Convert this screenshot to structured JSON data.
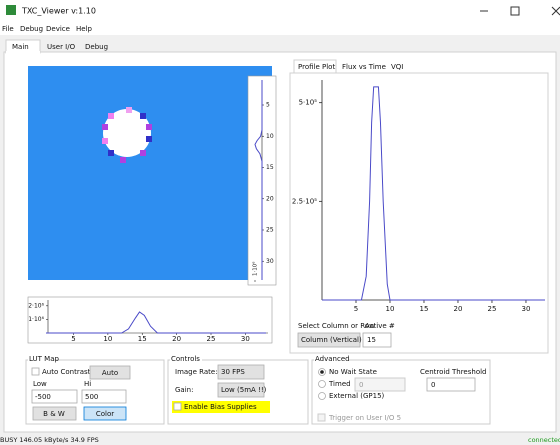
{
  "window": {
    "title": "TXC_Viewer v:1.10"
  },
  "menu": [
    "File",
    "Debug",
    "Device",
    "Help"
  ],
  "tabs": [
    "Main",
    "User I/O",
    "Debug"
  ],
  "plot_tabs": [
    "Profile Plot",
    "Flux vs Time",
    "VQI"
  ],
  "profile_plot": {
    "type": "line",
    "color": "#4a4ac8",
    "xlim": [
      0,
      32.8
    ],
    "ylim": [
      0,
      560000
    ],
    "xticks": [
      5,
      10,
      15,
      20,
      25,
      30
    ],
    "yticks": [
      {
        "value": 500000,
        "label": "5·10⁵"
      },
      {
        "value": 250000,
        "label": "2.5·10⁵"
      }
    ],
    "x": [
      0,
      5.8,
      6.5,
      7,
      7.3,
      7.6,
      8.3,
      8.6,
      9,
      9.6,
      10,
      32.8
    ],
    "values": [
      0,
      0,
      60000,
      250000,
      450000,
      540000,
      540000,
      450000,
      250000,
      40000,
      0,
      0
    ]
  },
  "row_profile": {
    "type": "line",
    "color": "#4a4ac8",
    "xlim": [
      1,
      33
    ],
    "ylim": [
      0,
      2500000
    ],
    "xticks": [
      5,
      10,
      15,
      20,
      25,
      30
    ],
    "yticks": [
      {
        "value": 2000000,
        "label": "2·10⁶"
      },
      {
        "value": 1000000,
        "label": "1·10⁶"
      }
    ],
    "x": [
      1,
      12,
      13,
      14,
      14.6,
      15.3,
      16.2,
      17.2,
      33
    ],
    "values": [
      0,
      0,
      300000,
      1100000,
      1550000,
      1300000,
      500000,
      0,
      0
    ]
  },
  "column_profile": {
    "type": "line",
    "color": "#4a4ac8",
    "xlim": [
      1,
      33
    ],
    "ylim": [
      0,
      1000000
    ],
    "xticks": [
      5,
      10,
      15,
      20,
      25,
      30
    ],
    "yticks": [
      {
        "value": 1000000,
        "label": "1·10⁶"
      }
    ],
    "x": [
      1,
      9,
      10,
      10.7,
      11.3,
      12,
      12.8,
      14,
      33
    ],
    "values": [
      0,
      0,
      200000,
      700000,
      1000000,
      800000,
      300000,
      0,
      0
    ]
  },
  "profile_select": {
    "label": "Select Column or Row",
    "active_label": "Active #",
    "mode": "Column (Vertical)",
    "active": 15
  },
  "lut_map": {
    "title": "LUT Map",
    "auto_contrast": "Auto Contrast",
    "auto": "Auto",
    "low_label": "Low",
    "hi_label": "Hi",
    "low": -500,
    "hi": 500,
    "bw": "B & W",
    "color": "Color"
  },
  "controls": {
    "title": "Controls",
    "image_rate_label": "Image Rate:",
    "image_rate": "30 FPS",
    "gain_label": "Gain:",
    "gain": "Low (5mA !!)",
    "bias": "Enable Bias Supplies"
  },
  "advanced": {
    "title": "Advanced",
    "no_wait": "No Wait State",
    "timed": "Timed",
    "timed_value": 0,
    "external": "External (GP15)",
    "centroid_label": "Centroid Threshold",
    "centroid": 0,
    "trigger": "Trigger on User I/O 5"
  },
  "status": {
    "left": "BUSY  146.05 kByte/s  34.9 FPS",
    "right": "connected"
  }
}
